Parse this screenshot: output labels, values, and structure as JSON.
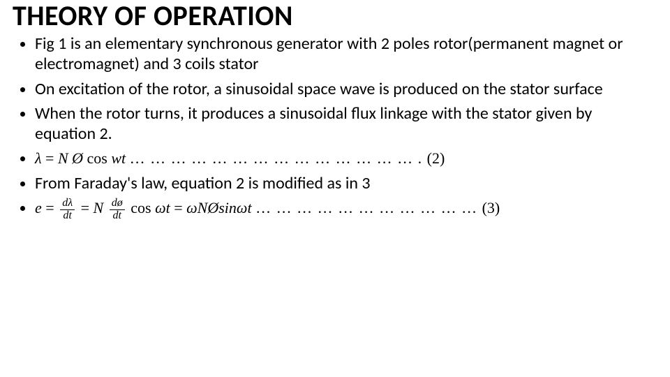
{
  "colors": {
    "background": "#ffffff",
    "text": "#000000"
  },
  "typography": {
    "title_family": "Calibri",
    "title_size_pt": 40,
    "title_weight": "bold",
    "body_family": "Calibri",
    "body_size_pt": 24,
    "math_family": "Cambria Math",
    "math_size_pt": 22,
    "frac_size_pt": 16
  },
  "title": "THEORY OF OPERATION",
  "bullets": {
    "b1": "Fig 1 is an elementary synchronous generator with 2 poles rotor(permanent magnet or electromagnet)  and 3 coils stator",
    "b2": "On excitation of the rotor, a sinusoidal space wave is produced on the stator surface",
    "b3": "When the rotor turns, it produces a sinusoidal flux linkage with the stator given by equation 2.",
    "eq2": {
      "lambda": "λ",
      "eq": " = ",
      "N": "N",
      "phi": "Ø",
      "cos": " cos ",
      "wt": "wt",
      "dots": "   … … … … … … … … … … … … … … . ",
      "num": "(2)"
    },
    "b5": "From Faraday's law, equation 2 is modified as in 3",
    "eq3": {
      "e": "e",
      "eq": " = ",
      "frac1_num": "dλ",
      "frac1_den": "dt",
      "eq2": " = ",
      "N": "N",
      "frac2_num": "dø",
      "frac2_den": "dt",
      "cos": " cos ",
      "omega_t": "ωt",
      "eq3": " =  ",
      "rhs": "ωNØsinωt",
      "dots": "          … … … … … … … … … … … ",
      "num": "(3)"
    }
  }
}
